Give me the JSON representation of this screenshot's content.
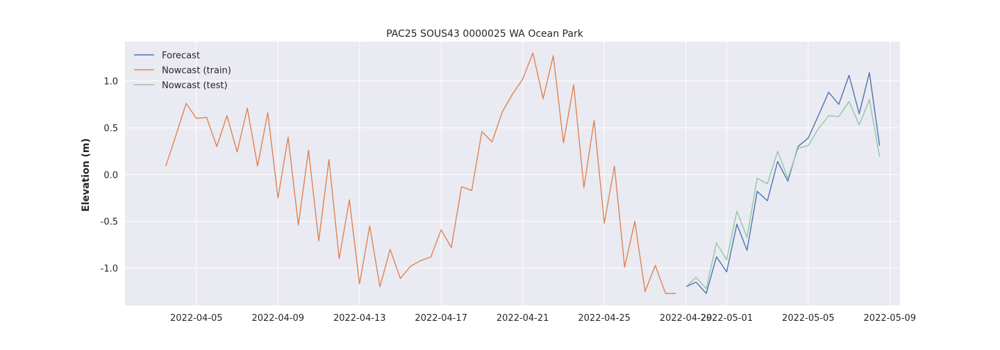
{
  "chart_data": {
    "type": "line",
    "title": "PAC25 SOUS43 0000025 WA Ocean Park",
    "xlabel": "",
    "ylabel": "Elevation (m)",
    "xlim": [
      "2022-04-01T12:00",
      "2022-05-09T12:00"
    ],
    "ylim": [
      -1.4,
      1.42
    ],
    "x_ticks": [
      "2022-04-05",
      "2022-04-09",
      "2022-04-13",
      "2022-04-17",
      "2022-04-21",
      "2022-04-25",
      "2022-04-29",
      "2022-05-01",
      "2022-05-05",
      "2022-05-09"
    ],
    "y_ticks": [
      -1.0,
      -0.5,
      0.0,
      0.5,
      1.0
    ],
    "grid": true,
    "legend_position": "top-left",
    "series": [
      {
        "name": "Forecast",
        "color": "#4c72b0",
        "x": [
          "2022-04-29T00:00",
          "2022-04-29T12:00",
          "2022-04-30T00:00",
          "2022-04-30T12:00",
          "2022-05-01T00:00",
          "2022-05-01T12:00",
          "2022-05-02T00:00",
          "2022-05-02T12:00",
          "2022-05-03T00:00",
          "2022-05-03T12:00",
          "2022-05-04T00:00",
          "2022-05-04T12:00",
          "2022-05-05T00:00",
          "2022-05-05T12:00",
          "2022-05-06T00:00",
          "2022-05-06T12:00",
          "2022-05-07T00:00",
          "2022-05-07T12:00",
          "2022-05-08T00:00",
          "2022-05-08T12:00"
        ],
        "y": [
          -1.2,
          -1.15,
          -1.27,
          -0.88,
          -1.04,
          -0.53,
          -0.81,
          -0.18,
          -0.28,
          0.14,
          -0.07,
          0.3,
          0.39,
          0.63,
          0.88,
          0.75,
          1.06,
          0.65,
          1.09,
          0.31
        ]
      },
      {
        "name": "Nowcast (train)",
        "color": "#dd8452",
        "x": [
          "2022-04-03T12:00",
          "2022-04-04T00:00",
          "2022-04-04T12:00",
          "2022-04-05T00:00",
          "2022-04-05T12:00",
          "2022-04-06T00:00",
          "2022-04-06T12:00",
          "2022-04-07T00:00",
          "2022-04-07T12:00",
          "2022-04-08T00:00",
          "2022-04-08T12:00",
          "2022-04-09T00:00",
          "2022-04-09T12:00",
          "2022-04-10T00:00",
          "2022-04-10T12:00",
          "2022-04-11T00:00",
          "2022-04-11T12:00",
          "2022-04-12T00:00",
          "2022-04-12T12:00",
          "2022-04-13T00:00",
          "2022-04-13T12:00",
          "2022-04-14T00:00",
          "2022-04-14T12:00",
          "2022-04-15T00:00",
          "2022-04-15T12:00",
          "2022-04-16T00:00",
          "2022-04-16T12:00",
          "2022-04-17T00:00",
          "2022-04-17T12:00",
          "2022-04-18T00:00",
          "2022-04-18T12:00",
          "2022-04-19T00:00",
          "2022-04-19T12:00",
          "2022-04-20T00:00",
          "2022-04-20T12:00",
          "2022-04-21T00:00",
          "2022-04-21T12:00",
          "2022-04-22T00:00",
          "2022-04-22T12:00",
          "2022-04-23T00:00",
          "2022-04-23T12:00",
          "2022-04-24T00:00",
          "2022-04-24T12:00",
          "2022-04-25T00:00",
          "2022-04-25T12:00",
          "2022-04-26T00:00",
          "2022-04-26T12:00",
          "2022-04-27T00:00",
          "2022-04-27T12:00",
          "2022-04-28T00:00",
          "2022-04-28T12:00"
        ],
        "y": [
          0.09,
          0.42,
          0.76,
          0.6,
          0.61,
          0.3,
          0.63,
          0.24,
          0.71,
          0.09,
          0.66,
          -0.25,
          0.4,
          -0.54,
          0.26,
          -0.71,
          0.16,
          -0.9,
          -0.27,
          -1.17,
          -0.55,
          -1.2,
          -0.8,
          -1.11,
          -0.98,
          -0.92,
          -0.88,
          -0.59,
          -0.78,
          -0.13,
          -0.17,
          0.46,
          0.35,
          0.67,
          0.86,
          1.02,
          1.3,
          0.81,
          1.27,
          0.34,
          0.96,
          -0.14,
          0.58,
          -0.52,
          0.09,
          -0.99,
          -0.5,
          -1.25,
          -0.97,
          -1.27,
          -1.27
        ]
      },
      {
        "name": "Nowcast (test)",
        "color": "#8fc8a0",
        "x": [
          "2022-04-29T00:00",
          "2022-04-29T12:00",
          "2022-04-30T00:00",
          "2022-04-30T12:00",
          "2022-05-01T00:00",
          "2022-05-01T12:00",
          "2022-05-02T00:00",
          "2022-05-02T12:00",
          "2022-05-03T00:00",
          "2022-05-03T12:00",
          "2022-05-04T00:00",
          "2022-05-04T12:00",
          "2022-05-05T00:00",
          "2022-05-05T12:00",
          "2022-05-06T00:00",
          "2022-05-06T12:00",
          "2022-05-07T00:00",
          "2022-05-07T12:00",
          "2022-05-08T00:00",
          "2022-05-08T12:00"
        ],
        "y": [
          -1.2,
          -1.1,
          -1.22,
          -0.73,
          -0.91,
          -0.39,
          -0.67,
          -0.04,
          -0.1,
          0.25,
          -0.04,
          0.28,
          0.31,
          0.49,
          0.63,
          0.62,
          0.78,
          0.53,
          0.8,
          0.19
        ]
      }
    ]
  }
}
